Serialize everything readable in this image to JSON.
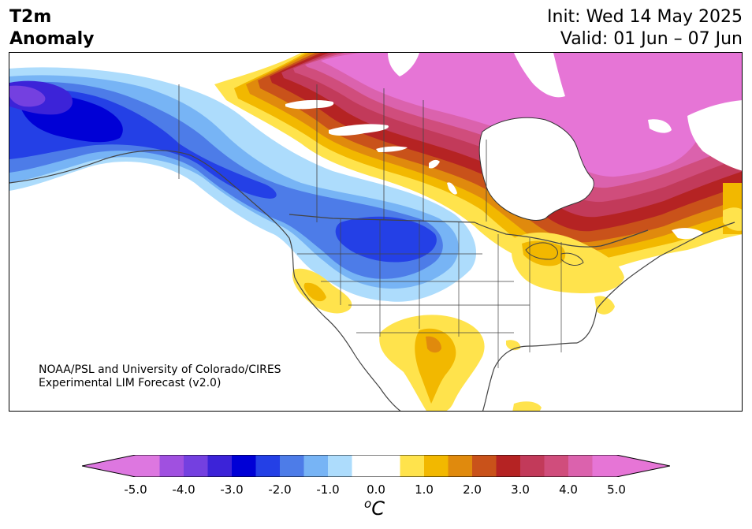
{
  "title": {
    "line1": "T2m",
    "line2": "Anomaly"
  },
  "header": {
    "init": "Init: Wed 14 May 2025",
    "valid": "Valid: 01 Jun – 07 Jun"
  },
  "credit": {
    "line1": "NOAA/PSL and University of Colorado/CIRES",
    "line2": "Experimental LIM Forecast (v2.0)"
  },
  "colorbar": {
    "unit_base": "C",
    "unit_sup": "o",
    "ticks": [
      "-5.0",
      "-4.0",
      "-3.0",
      "-2.0",
      "-1.0",
      "0.0",
      "1.0",
      "2.0",
      "3.0",
      "4.0",
      "5.0"
    ],
    "colors": [
      "#dd77e0",
      "#a050e0",
      "#7440e0",
      "#3c23d8",
      "#0000d6",
      "#2440e6",
      "#4d7ce8",
      "#77b4f5",
      "#addcfc",
      "#ffffff",
      "#ffffff",
      "#ffe34c",
      "#f2b800",
      "#e08a0d",
      "#c9521a",
      "#b52323",
      "#c23a5a",
      "#d04d7c",
      "#db62ad",
      "#e675d6"
    ]
  },
  "map_legend": {
    "cold_colors": [
      "#addcfc",
      "#77b4f5",
      "#4d7ce8",
      "#2440e6",
      "#0000d6",
      "#3c23d8",
      "#7440e0"
    ],
    "warm_colors": [
      "#ffe34c",
      "#f2b800",
      "#e08a0d",
      "#c9521a",
      "#b52323",
      "#c23a5a",
      "#d04d7c",
      "#db62ad",
      "#e675d6"
    ]
  }
}
